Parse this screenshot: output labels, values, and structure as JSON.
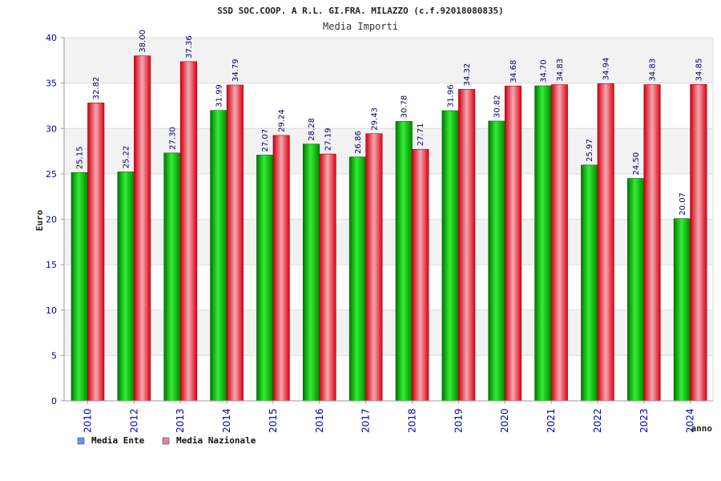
{
  "chart_data": {
    "type": "bar",
    "title": "SSD SOC.COOP. A R.L. GI.FRA. MILAZZO (c.f.92018080835)",
    "subtitle": "Media Importi",
    "ylabel": "Euro",
    "xlabel": "anno",
    "ylim": [
      0,
      40
    ],
    "yticks": [
      0,
      5,
      10,
      15,
      20,
      25,
      30,
      35,
      40
    ],
    "categories": [
      "2010",
      "2012",
      "2013",
      "2014",
      "2015",
      "2016",
      "2017",
      "2018",
      "2019",
      "2020",
      "2021",
      "2022",
      "2023",
      "2024"
    ],
    "series": [
      {
        "name": "Media Ente",
        "color": "#00bb00",
        "legend_color": "#6699ee",
        "values": [
          25.15,
          25.22,
          27.3,
          31.99,
          27.07,
          28.28,
          26.86,
          30.78,
          31.96,
          30.82,
          34.7,
          25.97,
          24.5,
          20.07
        ],
        "labels": [
          "25.15",
          "25.22",
          "27.30",
          "31.99",
          "27.07",
          "28.28",
          "26.86",
          "30.78",
          "31.96",
          "30.82",
          "34.70",
          "25.97",
          "24.50",
          "20.07"
        ]
      },
      {
        "name": "Media Nazionale",
        "color": "#ee1122",
        "legend_color": "#dd88aa",
        "values": [
          32.82,
          38.0,
          37.36,
          34.79,
          29.24,
          27.19,
          29.43,
          27.71,
          34.32,
          34.68,
          34.83,
          34.94,
          34.83,
          34.85
        ],
        "labels": [
          "32.82",
          "38.00",
          "37.36",
          "34.79",
          "29.24",
          "27.19",
          "29.43",
          "27.71",
          "34.32",
          "34.68",
          "34.83",
          "34.94",
          "34.83",
          "34.85"
        ]
      }
    ],
    "grid": true,
    "legend": "bottom-left"
  }
}
